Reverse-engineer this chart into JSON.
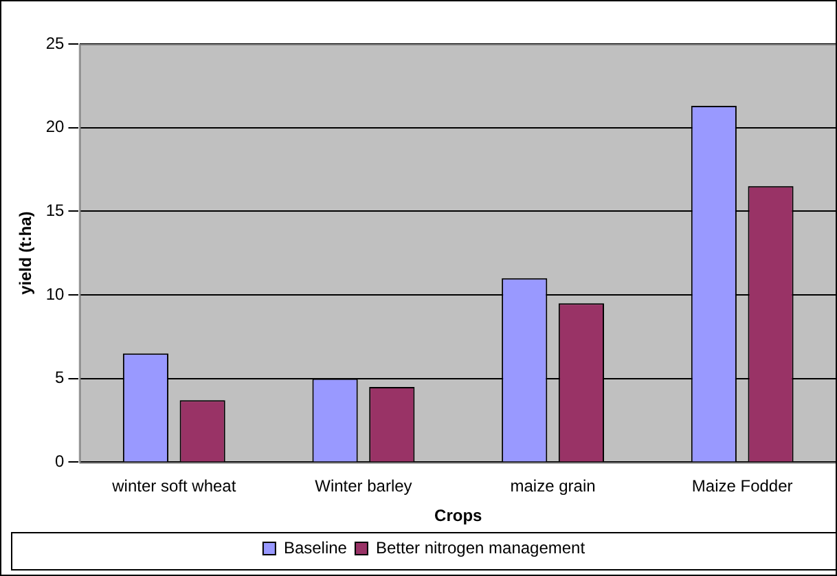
{
  "chart_data": {
    "type": "bar",
    "xlabel": "Crops",
    "ylabel": "yield (t:ha)",
    "categories": [
      "winter soft wheat",
      "Winter barley",
      "maize grain",
      "Maize Fodder"
    ],
    "series": [
      {
        "name": "Baseline",
        "color": "#9999ff",
        "values": [
          6.5,
          5.0,
          11.0,
          21.3
        ]
      },
      {
        "name": "Better nitrogen management",
        "color": "#993366",
        "values": [
          3.7,
          4.5,
          9.5,
          16.5
        ]
      }
    ],
    "ylim": [
      0,
      25
    ],
    "yticks": [
      0,
      5,
      10,
      15,
      20,
      25
    ],
    "grid": "y",
    "legend": "bottom"
  }
}
